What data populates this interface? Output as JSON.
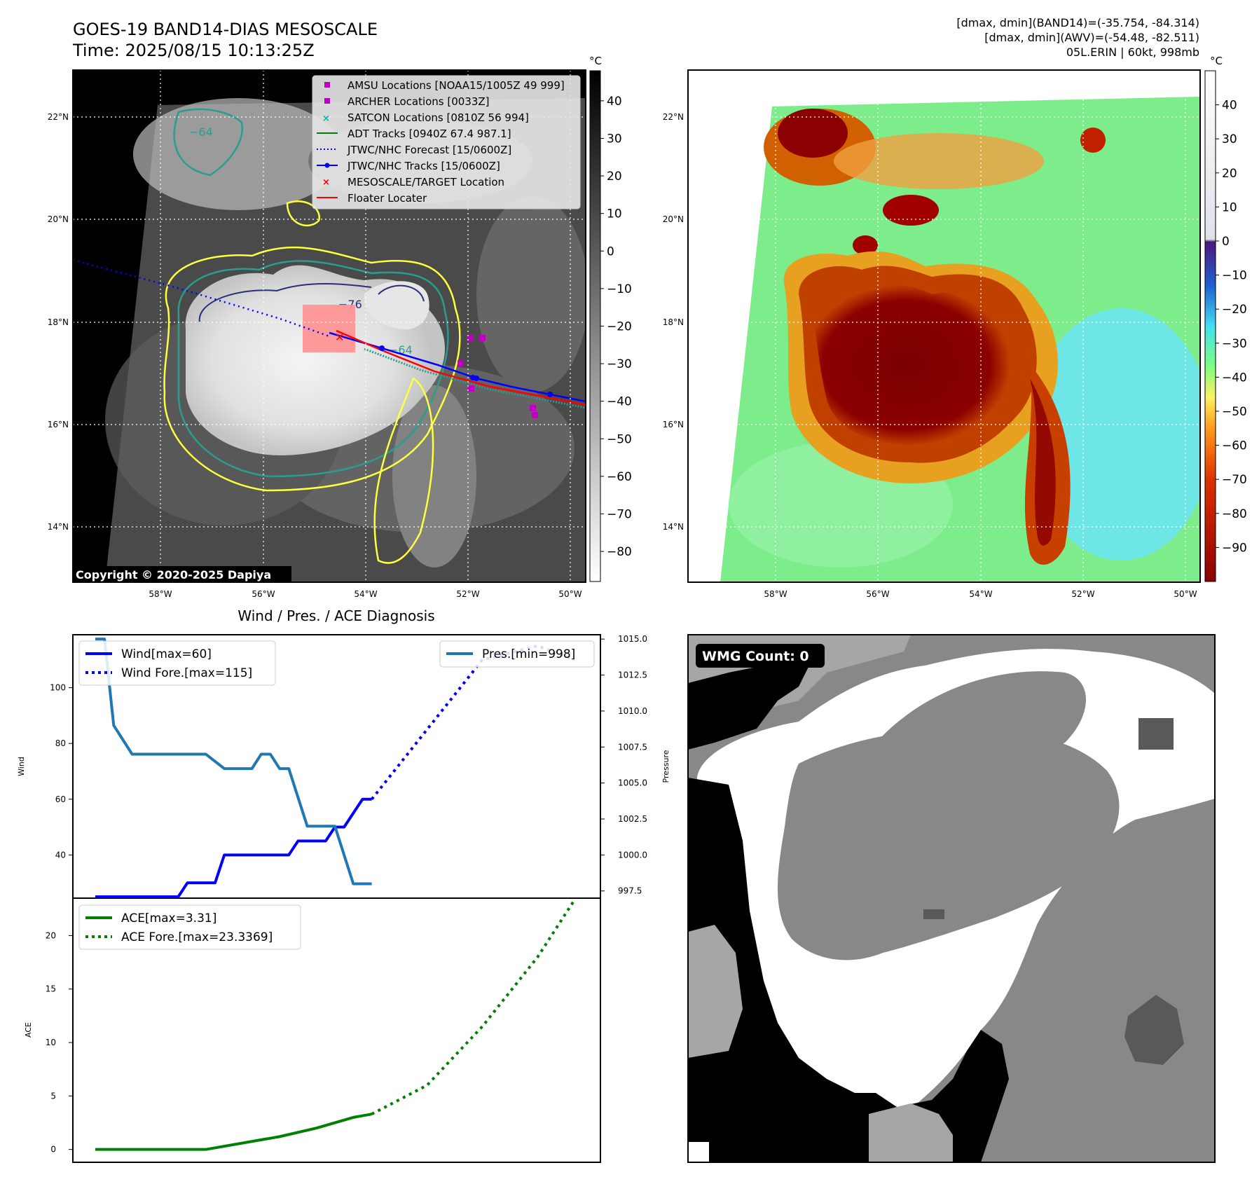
{
  "header": {
    "title": "GOES-19 BAND14-DIAS MESOSCALE",
    "time": "Time: 2025/08/15 10:13:25Z",
    "info1": "[dmax, dmin](BAND14)=(-35.754, -84.314)",
    "info2": "[dmax, dmin](AWV)=(-54.48, -82.511)",
    "info3": "05L.ERIN | 60kt, 998mb"
  },
  "colors": {
    "wind": "#0000ff",
    "pressure": "#1f77b4",
    "ace": "#008000",
    "track_blue": "#0000ff",
    "floater_red": "#ff0000",
    "amsu": "#c000c0",
    "satcon": "#00b0b0",
    "adt": "#008000",
    "contour_yellow": "#ffff40",
    "contour_teal": "#2a9d8f",
    "contour_navy": "#2a2f7a"
  },
  "panel1": {
    "lat_labels": [
      "22°N",
      "20°N",
      "18°N",
      "16°N",
      "14°N"
    ],
    "lon_labels": [
      "58°W",
      "56°W",
      "54°W",
      "52°W",
      "50°W"
    ],
    "colorbar_unit": "°C",
    "colorbar_ticks": [
      "40",
      "30",
      "20",
      "10",
      "0",
      "−10",
      "−20",
      "−30",
      "−40",
      "−50",
      "−60",
      "−70",
      "−80"
    ],
    "contour_labels": [
      "−64",
      "−76",
      "−64"
    ],
    "copyright": "Copyright © 2020-2025 Dapiya",
    "legend": [
      {
        "label": "AMSU Locations [NOAA15/1005Z 49 999]",
        "icon": "square-marker-icon"
      },
      {
        "label": "ARCHER Locations [0033Z]",
        "icon": "square-marker-icon"
      },
      {
        "label": "SATCON Locations [0810Z 56 994]",
        "icon": "x-marker-icon"
      },
      {
        "label": "ADT Tracks [0940Z 67.4 987.1]",
        "icon": "line-icon"
      },
      {
        "label": "JTWC/NHC Forecast [15/0600Z]",
        "icon": "dotted-line-icon"
      },
      {
        "label": "JTWC/NHC Tracks [15/0600Z]",
        "icon": "line-dot-icon"
      },
      {
        "label": "MESOSCALE/TARGET Location",
        "icon": "x-marker-icon"
      },
      {
        "label": "Floater Locater",
        "icon": "line-icon"
      }
    ]
  },
  "panel2": {
    "lat_labels": [
      "22°N",
      "20°N",
      "18°N",
      "16°N",
      "14°N"
    ],
    "lon_labels": [
      "58°W",
      "56°W",
      "54°W",
      "52°W",
      "50°W"
    ],
    "colorbar_unit": "°C",
    "colorbar_ticks": [
      "40",
      "30",
      "20",
      "10",
      "0",
      "−10",
      "−20",
      "−30",
      "−40",
      "−50",
      "−60",
      "−70",
      "−80",
      "−90"
    ]
  },
  "panel4": {
    "badge": "WMG Count: 0"
  },
  "chart_data": [
    {
      "type": "line",
      "title": "Wind / Pres. / ACE Diagnosis",
      "ylabel": "Wind",
      "y2label": "Pressure",
      "ylim": [
        24.5,
        119
      ],
      "y2lim": [
        997,
        1015.3
      ],
      "yticks": [
        "40",
        "60",
        "80",
        "100"
      ],
      "y2ticks": [
        "997.5",
        "1000.0",
        "1002.5",
        "1005.0",
        "1007.5",
        "1010.0",
        "1012.5",
        "1015.0"
      ],
      "x": [
        0,
        1,
        2,
        3,
        4,
        5,
        6,
        7,
        8,
        9,
        10,
        11,
        12,
        13,
        14,
        15,
        16,
        17,
        18,
        19,
        20,
        21,
        22,
        23,
        24,
        25,
        26,
        27,
        28,
        29,
        30,
        31,
        32,
        33,
        34,
        35,
        36,
        37,
        38,
        39,
        40,
        41,
        42,
        43,
        44,
        45,
        46,
        47,
        48,
        49,
        50,
        51,
        52
      ],
      "series": [
        {
          "name": "Wind[max=60]",
          "axis": "left",
          "style": "solid",
          "x": [
            0,
            2,
            4,
            6,
            8,
            9,
            10,
            11,
            12,
            13,
            14,
            15,
            16,
            17,
            18,
            19,
            20,
            21,
            22,
            23,
            24,
            25,
            26,
            27,
            28,
            29,
            30
          ],
          "values": [
            25,
            25,
            25,
            25,
            25,
            25,
            30,
            30,
            30,
            30,
            40,
            40,
            40,
            40,
            40,
            40,
            40,
            40,
            45,
            45,
            45,
            45,
            50,
            50,
            55,
            60,
            60
          ]
        },
        {
          "name": "Wind Fore.[max=115]",
          "axis": "left",
          "style": "dotted",
          "x": [
            30,
            36,
            42,
            48,
            52
          ],
          "values": [
            60,
            85,
            110,
            115,
            110
          ]
        },
        {
          "name": "Pres.[min=998]",
          "axis": "right",
          "style": "solid",
          "x": [
            0,
            1,
            2,
            3,
            4,
            6,
            8,
            10,
            12,
            14,
            15,
            16,
            17,
            18,
            19,
            20,
            21,
            22,
            23,
            24,
            25,
            26,
            27,
            28,
            29,
            30
          ],
          "values": [
            1015,
            1015,
            1009,
            1008,
            1007,
            1007,
            1007,
            1007,
            1007,
            1006,
            1006,
            1006,
            1006,
            1007,
            1007,
            1006,
            1006,
            1004,
            1002,
            1002,
            1002,
            1002,
            1000,
            998,
            998,
            998
          ]
        }
      ]
    },
    {
      "type": "line",
      "ylabel": "ACE",
      "ylim": [
        -1.2,
        23.5
      ],
      "yticks": [
        "0",
        "5",
        "10",
        "15",
        "20"
      ],
      "series": [
        {
          "name": "ACE[max=3.31]",
          "style": "solid",
          "x": [
            0,
            6,
            12,
            16,
            20,
            24,
            28,
            30
          ],
          "values": [
            0,
            0,
            0,
            0.6,
            1.2,
            2.0,
            3.0,
            3.31
          ]
        },
        {
          "name": "ACE Fore.[max=23.3369]",
          "style": "dotted",
          "x": [
            30,
            36,
            42,
            48,
            52
          ],
          "values": [
            3.31,
            6.0,
            11.5,
            18.0,
            23.3369
          ]
        }
      ]
    }
  ]
}
